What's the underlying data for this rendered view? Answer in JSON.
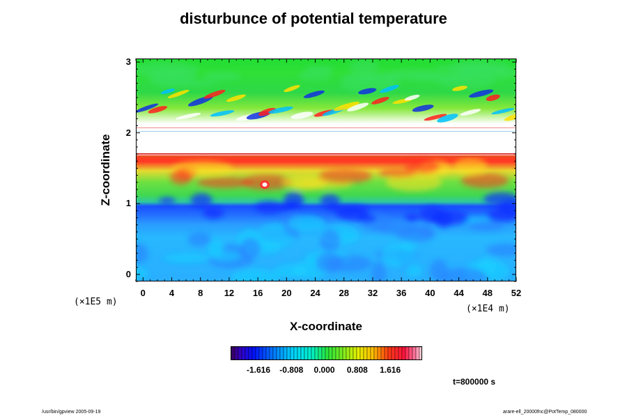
{
  "chart_data": {
    "type": "heatmap",
    "title": "disturbunce of potential temperature",
    "xlabel": "X-coordinate",
    "ylabel": "Z-coordinate",
    "x_scale_label": "(×1E4 m)",
    "y_scale_label": "(×1E5 m)",
    "xlim": [
      -1,
      52
    ],
    "ylim": [
      -0.1,
      3.05
    ],
    "x_ticks": [
      "0",
      "4",
      "8",
      "12",
      "16",
      "20",
      "24",
      "28",
      "32",
      "36",
      "40",
      "44",
      "48",
      "52"
    ],
    "y_ticks": [
      "0",
      "1",
      "2",
      "3"
    ],
    "colorbar": {
      "range": [
        -2.3,
        2.4
      ],
      "tick_labels": [
        "-1.616",
        "-0.808",
        "0.000",
        "0.808",
        "1.616"
      ],
      "tick_values": [
        -1.616,
        -0.808,
        0.0,
        0.808,
        1.616
      ]
    },
    "regions": [
      {
        "z_range": [
          -0.1,
          0.8
        ],
        "value": -0.9,
        "description": "lower layer, cyan-blue"
      },
      {
        "z_range": [
          0.8,
          1.1
        ],
        "value": -1.5,
        "description": "dark blue band"
      },
      {
        "z_range": [
          1.1,
          1.45
        ],
        "value": 0.2,
        "description": "green"
      },
      {
        "z_range": [
          1.45,
          1.72
        ],
        "value": 1.8,
        "description": "red band"
      },
      {
        "z_range": [
          1.72,
          2.05
        ],
        "value": null,
        "description": "out of range (white)"
      },
      {
        "z_range": [
          2.05,
          2.6
        ],
        "value": 0.0,
        "description": "wave layer"
      },
      {
        "z_range": [
          2.6,
          3.05
        ],
        "value": 0.1,
        "description": "upper green"
      }
    ],
    "annotation": "t=800000 s"
  },
  "colors": {
    "white": "#ffffff",
    "dark_blue": "#0a1ef0",
    "blue": "#2f6dff",
    "cyan": "#00d2ff",
    "green": "#38e040",
    "yellow": "#f0f000",
    "red": "#ff2020"
  },
  "footer": {
    "left": "/usr/bin/gpview 2005-09-19",
    "right": "arare-ell_20000fnc@PotTemp_080000"
  }
}
